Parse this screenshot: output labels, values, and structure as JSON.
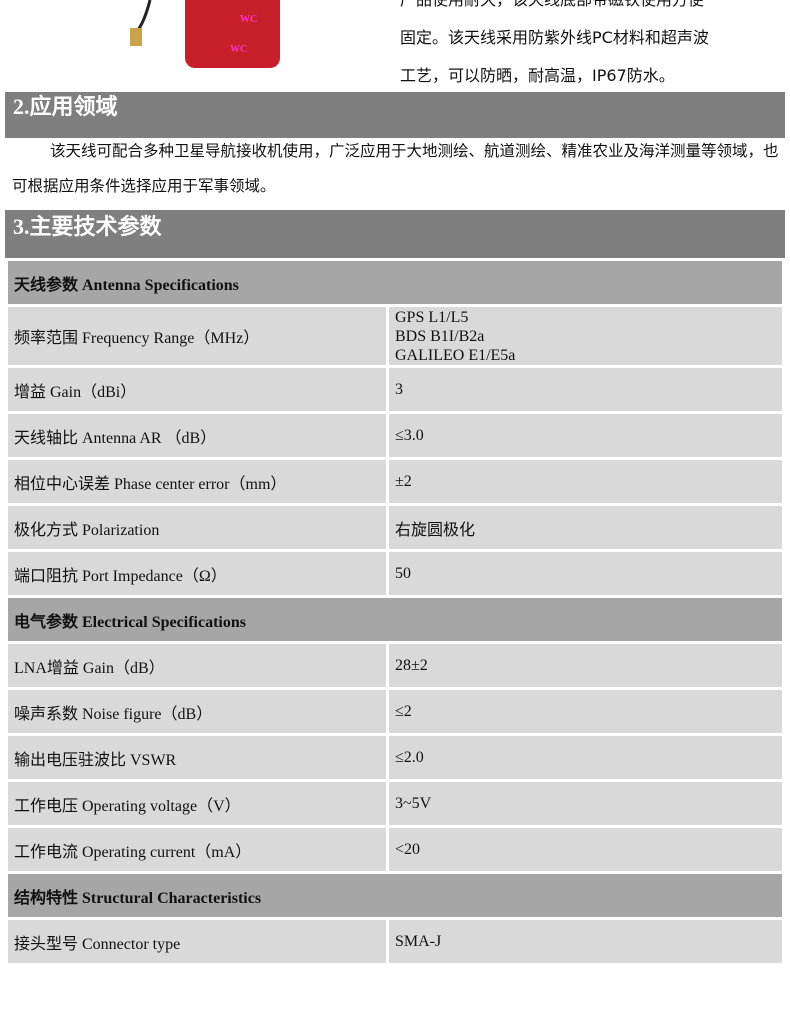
{
  "intro": {
    "lines": [
      "产品使用耐久，该天线底部带磁铁使用方便",
      "固定。该天线采用防紫外线PC材料和超声波",
      "工艺，可以防晒，耐高温，IP67防水。"
    ]
  },
  "section2": {
    "title": "2.应用领域",
    "text": "该天线可配合多种卫星导航接收机使用，广泛应用于大地测绘、航道测绘、精准农业及海洋测量等领域，也可根据应用条件选择应用于军事领域。"
  },
  "section3": {
    "title": "3.主要技术参数"
  },
  "table": [
    {
      "type": "sub",
      "label": "天线参数 Antenna Specifications"
    },
    {
      "label": "频率范围 Frequency Range（MHz）",
      "value": "GPS L1/L5\nBDS B1I/B2a\nGALILEO E1/E5a"
    },
    {
      "label": "增益 Gain（dBi）",
      "value": "3"
    },
    {
      "label": "天线轴比 Antenna AR （dB）",
      "value": "≤3.0"
    },
    {
      "label": "相位中心误差 Phase center error（mm）",
      "value": "±2"
    },
    {
      "label": "极化方式 Polarization",
      "value": "右旋圆极化"
    },
    {
      "label": "端口阻抗 Port Impedance（Ω）",
      "value": "50"
    },
    {
      "type": "sub",
      "label": "电气参数 Electrical Specifications"
    },
    {
      "label": "LNA增益 Gain（dB）",
      "value": "28±2"
    },
    {
      "label": "噪声系数 Noise figure（dB）",
      "value": "≤2"
    },
    {
      "label": "输出电压驻波比 VSWR",
      "value": "≤2.0"
    },
    {
      "label": "工作电压 Operating voltage（V）",
      "value": "3~5V"
    },
    {
      "label": "工作电流 Operating current（mA）",
      "value": "<20"
    },
    {
      "type": "sub",
      "label": "结构特性 Structural Characteristics"
    },
    {
      "label": "接头型号 Connector type",
      "value": "SMA-J"
    }
  ]
}
